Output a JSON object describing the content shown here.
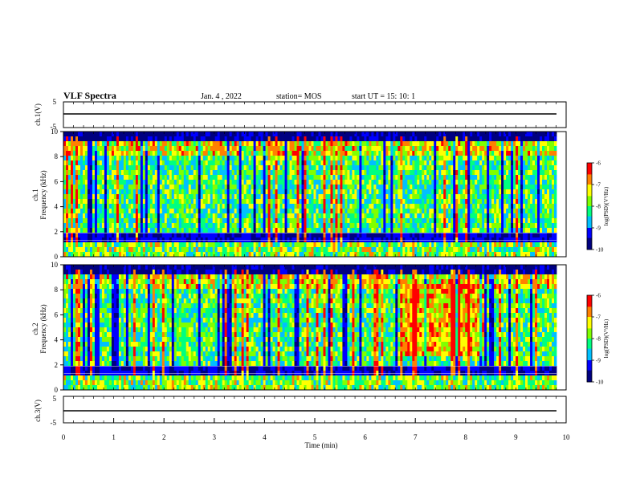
{
  "header": {
    "title": "VLF Spectra",
    "date": "Jan. 4 , 2022",
    "station": "station= MOS",
    "start": "start  UT =   15: 10: 1"
  },
  "chart_data": [
    {
      "type": "line",
      "panel": "ch1-voltage",
      "ylabel": "ch.1(V)",
      "ylim": [
        -5,
        5
      ],
      "yticks": [
        "5",
        "-5"
      ],
      "series": [
        {
          "values_description": "flat trace",
          "level": 0
        }
      ]
    },
    {
      "type": "heatmap",
      "panel": "ch1-spectrogram",
      "ylabel_line1": "ch.1",
      "ylabel_line2": "Frequency (kHz)",
      "ylim": [
        0,
        10
      ],
      "yticks": [
        "0",
        "2",
        "4",
        "6",
        "8",
        "10"
      ],
      "colorbar": {
        "label": "log(PSD)(V²/Hz)",
        "range": [
          -10,
          -6
        ],
        "ticks": [
          "-6",
          "-7",
          "-8",
          "-9",
          "-10"
        ],
        "colors": [
          "#000080",
          "#0000ff",
          "#00c0ff",
          "#00ff80",
          "#80ff00",
          "#ffff00",
          "#ff8000",
          "#ff0000",
          "#ffffff"
        ]
      }
    },
    {
      "type": "heatmap",
      "panel": "ch2-spectrogram",
      "ylabel_line1": "ch.2",
      "ylabel_line2": "Frequency (kHz)",
      "ylim": [
        0,
        10
      ],
      "yticks": [
        "0",
        "2",
        "4",
        "6",
        "8",
        "10"
      ],
      "colorbar": {
        "label": "log(PSD)(V²/Hz)",
        "range": [
          -10,
          -6
        ],
        "ticks": [
          "-6",
          "-7",
          "-8",
          "-9",
          "-10"
        ],
        "colors": [
          "#000080",
          "#0000ff",
          "#00c0ff",
          "#00ff80",
          "#80ff00",
          "#ffff00",
          "#ff8000",
          "#ff0000",
          "#ffffff"
        ]
      }
    },
    {
      "type": "line",
      "panel": "ch3-voltage",
      "ylabel": "ch.3(V)",
      "ylim": [
        -5,
        5
      ],
      "yticks": [
        "5",
        "-5"
      ],
      "series": [
        {
          "values_description": "flat trace",
          "level": 0
        }
      ]
    }
  ],
  "xaxis": {
    "label": "Time  (min)",
    "xlim": [
      0,
      10
    ],
    "ticks": [
      "0",
      "1",
      "2",
      "3",
      "4",
      "5",
      "6",
      "7",
      "8",
      "9",
      "10"
    ]
  }
}
